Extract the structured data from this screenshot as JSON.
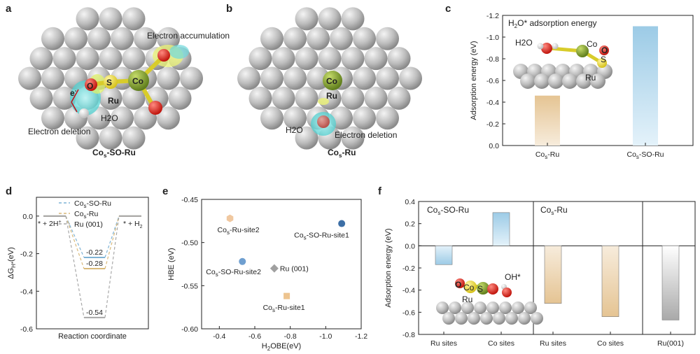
{
  "panels": {
    "a": {
      "label": "a",
      "atoms": {
        "o": "O",
        "s": "S",
        "co": "Co",
        "ru": "Ru",
        "h2o": "H2O"
      },
      "electron": "e",
      "electron_sup": "-",
      "accumulation": "Electron accumulation",
      "deletion": "Electron deletion",
      "title_main": "Co",
      "title_sub": "s",
      "title_rest": "-SO-Ru"
    },
    "b": {
      "label": "b",
      "atoms": {
        "co": "Co",
        "ru": "Ru",
        "h2o": "H2O"
      },
      "deletion": "Electron deletion",
      "title_main": "Co",
      "title_sub": "s",
      "title_rest": "-Ru"
    },
    "c": {
      "label": "c"
    },
    "d": {
      "label": "d"
    },
    "e": {
      "label": "e"
    },
    "f": {
      "label": "f"
    }
  },
  "chart_data": [
    {
      "id": "c",
      "type": "bar",
      "title": "H2O* adsorption energy",
      "ylabel": "Adsorption energy (eV)",
      "ylim": [
        0,
        -1.2
      ],
      "yticks": [
        "-1.2",
        "-1.0",
        "-0.8",
        "-0.6",
        "-0.4",
        "-0.2",
        "0.0"
      ],
      "categories": [
        "Cos-Ru",
        "Cos-SO-Ru"
      ],
      "values": [
        -0.46,
        -1.1
      ],
      "colors": [
        "#e8c99a",
        "#a9d3ea"
      ],
      "inset_atoms": {
        "h2o": "H2O",
        "co": "Co",
        "o": "O",
        "s": "S",
        "ru": "Ru"
      }
    },
    {
      "id": "d",
      "type": "line",
      "ylabel": "ΔGH*(eV)",
      "xlabel": "Reaction coordinate",
      "ylim": [
        -0.6,
        0.1
      ],
      "yticks": [
        "0.0",
        "-0.2",
        "-0.4",
        "-0.6"
      ],
      "states": [
        "* + 2H+",
        "",
        "* + H2"
      ],
      "state_left": "* + 2H",
      "state_left_sup": "+",
      "state_right": "* + H",
      "state_right_sub": "2",
      "series": [
        {
          "name": "Cos-SO-Ru",
          "values": [
            0,
            -0.22,
            0
          ],
          "color": "#7fb3d5",
          "label": "-0.22"
        },
        {
          "name": "Cos-Ru",
          "values": [
            0,
            -0.28,
            0
          ],
          "color": "#d9b97a",
          "label": "-0.28"
        },
        {
          "name": "Ru (001)",
          "values": [
            0,
            -0.54,
            0
          ],
          "color": "#a8a8a8",
          "label": "-0.54"
        }
      ]
    },
    {
      "id": "e",
      "type": "scatter",
      "xlabel": "H2OBE(eV)",
      "ylabel": "HBE (eV)",
      "xlim": [
        -0.3,
        -1.2
      ],
      "ylim": [
        -0.6,
        -0.45
      ],
      "xticks": [
        "-0.4",
        "-0.6",
        "-0.8",
        "-1.0",
        "-1.2"
      ],
      "yticks": [
        "-0.45",
        "-0.50",
        "-0.55",
        "-0.60"
      ],
      "points": [
        {
          "name": "Cos-Ru-site2",
          "x": -0.46,
          "y": -0.472,
          "color": "#f0c8a0",
          "shape": "hexagon"
        },
        {
          "name": "Cos-SO-Ru-site1",
          "x": -1.09,
          "y": -0.478,
          "color": "#3d6fa6",
          "shape": "circle"
        },
        {
          "name": "Cos-SO-Ru-site2",
          "x": -0.53,
          "y": -0.522,
          "color": "#6f9fd0",
          "shape": "circle"
        },
        {
          "name": "Ru (001)",
          "x": -0.71,
          "y": -0.53,
          "color": "#a0a0a0",
          "shape": "diamond"
        },
        {
          "name": "Cos-Ru-site1",
          "x": -0.78,
          "y": -0.562,
          "color": "#edc48f",
          "shape": "square"
        }
      ]
    },
    {
      "id": "f",
      "type": "bar",
      "ylabel": "Adsorption energy (eV)",
      "ylim": [
        -0.8,
        0.4
      ],
      "yticks": [
        "0.4",
        "0.2",
        "0.0",
        "-0.2",
        "-0.4",
        "-0.6",
        "-0.8"
      ],
      "groups": [
        "Cos-SO-Ru",
        "Cos-Ru",
        ""
      ],
      "categories": [
        "Ru sites",
        "Co sites",
        "Ru sites",
        "Co sites",
        "Ru(001)"
      ],
      "values": [
        -0.17,
        0.3,
        -0.52,
        -0.64,
        -0.67
      ],
      "colors": [
        "#a9d3ea",
        "#a9d3ea",
        "#e8c99a",
        "#e8c99a",
        "#b5b5b5"
      ],
      "inset_atoms": {
        "o": "O",
        "co": "Co",
        "s": "S",
        "ru": "Ru",
        "oh": "OH*"
      }
    }
  ]
}
